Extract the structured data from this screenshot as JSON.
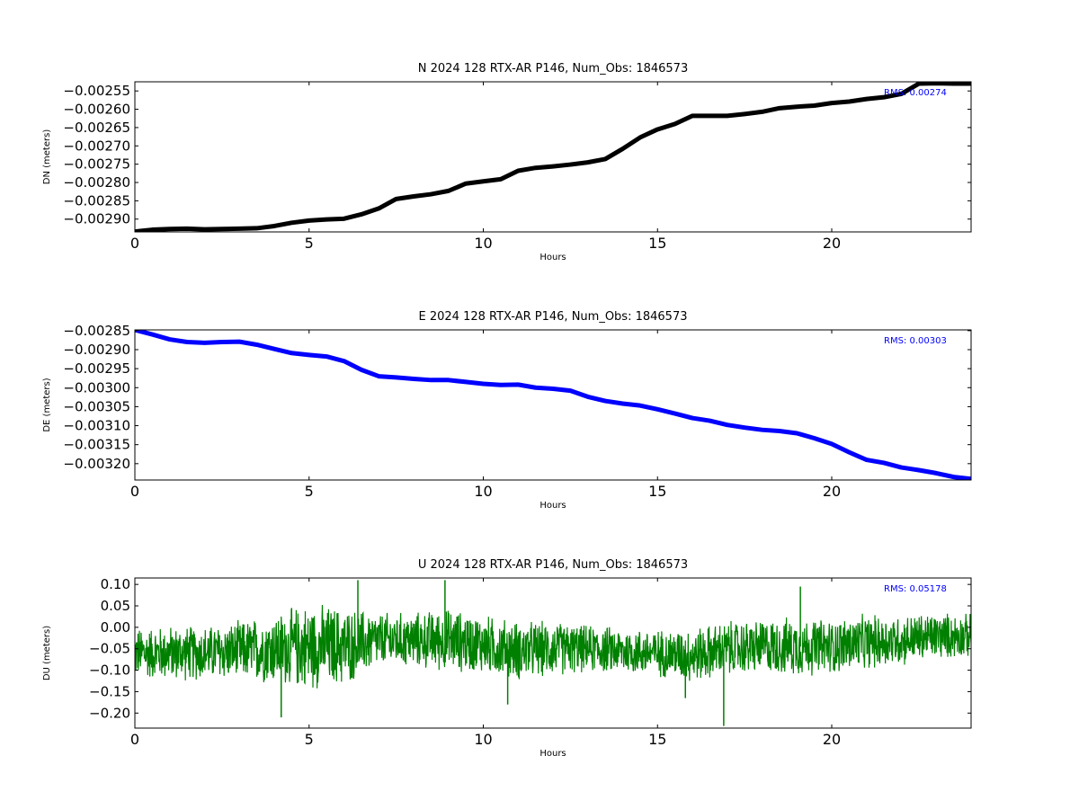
{
  "chart_data": [
    {
      "type": "line",
      "title": "N 2024 128 RTX-AR  P146, Num_Obs: 1846573",
      "xlabel": "Hours",
      "ylabel": "DN (meters)",
      "color": "#000000",
      "rms_text": "RMS:  0.00274",
      "rms_color": "#0000ff",
      "xlim": [
        0,
        24
      ],
      "ylim": [
        -0.002935,
        -0.002525
      ],
      "x_ticks": [
        0,
        5,
        10,
        15,
        20
      ],
      "x_tick_labels": [
        "0",
        "5",
        "10",
        "15",
        "20"
      ],
      "y_ticks": [
        -0.00255,
        -0.0026,
        -0.00265,
        -0.0027,
        -0.00275,
        -0.0028,
        -0.00285,
        -0.0029
      ],
      "y_tick_labels": [
        "−0.00255",
        "−0.00260",
        "−0.00265",
        "−0.00270",
        "−0.00275",
        "−0.00280",
        "−0.00285",
        "−0.00290"
      ],
      "grid": false,
      "series": [
        {
          "x": [
            0,
            0.5,
            1,
            1.5,
            2,
            2.5,
            3,
            3.5,
            4,
            4.5,
            5,
            5.5,
            6,
            6.5,
            7,
            7.5,
            8,
            8.5,
            9,
            9.5,
            10,
            10.5,
            11,
            11.5,
            12,
            12.5,
            13,
            13.5,
            14,
            14.5,
            15,
            15.5,
            16,
            16.5,
            17,
            17.5,
            18,
            18.5,
            19,
            19.5,
            20,
            20.5,
            21,
            21.5,
            22,
            22.5,
            23,
            23.5,
            24
          ],
          "y": [
            -0.002934,
            -0.002929,
            -0.002927,
            -0.002926,
            -0.002928,
            -0.002927,
            -0.002926,
            -0.002925,
            -0.002919,
            -0.00291,
            -0.002904,
            -0.002901,
            -0.002899,
            -0.002887,
            -0.002871,
            -0.002845,
            -0.002838,
            -0.002832,
            -0.002823,
            -0.002803,
            -0.002797,
            -0.002791,
            -0.002768,
            -0.00276,
            -0.002756,
            -0.002751,
            -0.002745,
            -0.002736,
            -0.002708,
            -0.002677,
            -0.002655,
            -0.00264,
            -0.002618,
            -0.002618,
            -0.002618,
            -0.002613,
            -0.002607,
            -0.002597,
            -0.002593,
            -0.00259,
            -0.002583,
            -0.002579,
            -0.002572,
            -0.002567,
            -0.002558,
            -0.00253,
            -0.002529,
            -0.00253,
            -0.00253
          ]
        }
      ]
    },
    {
      "type": "line",
      "title": "E 2024 128 RTX-AR  P146, Num_Obs: 1846573",
      "xlabel": "Hours",
      "ylabel": "DE (meters)",
      "color": "#0000ff",
      "rms_text": "RMS:  0.00303",
      "rms_color": "#0000ff",
      "xlim": [
        0,
        24
      ],
      "ylim": [
        -0.003243,
        -0.002848
      ],
      "x_ticks": [
        0,
        5,
        10,
        15,
        20
      ],
      "x_tick_labels": [
        "0",
        "5",
        "10",
        "15",
        "20"
      ],
      "y_ticks": [
        -0.00285,
        -0.0029,
        -0.00295,
        -0.003,
        -0.00305,
        -0.0031,
        -0.00315,
        -0.0032
      ],
      "y_tick_labels": [
        "−0.00285",
        "−0.00290",
        "−0.00295",
        "−0.00300",
        "−0.00305",
        "−0.00310",
        "−0.00315",
        "−0.00320"
      ],
      "grid": false,
      "series": [
        {
          "x": [
            0,
            0.5,
            1,
            1.5,
            2,
            2.5,
            3,
            3.5,
            4,
            4.5,
            5,
            5.5,
            6,
            6.5,
            7,
            7.5,
            8,
            8.5,
            9,
            9.5,
            10,
            10.5,
            11,
            11.5,
            12,
            12.5,
            13,
            13.5,
            14,
            14.5,
            15,
            15.5,
            16,
            16.5,
            17,
            17.5,
            18,
            18.5,
            19,
            19.5,
            20,
            20.5,
            21,
            21.5,
            22,
            22.5,
            23,
            23.5,
            24
          ],
          "y": [
            -0.002848,
            -0.00286,
            -0.002873,
            -0.00288,
            -0.002882,
            -0.00288,
            -0.002879,
            -0.002887,
            -0.002898,
            -0.002909,
            -0.002914,
            -0.002918,
            -0.00293,
            -0.002953,
            -0.00297,
            -0.002973,
            -0.002977,
            -0.00298,
            -0.00298,
            -0.002985,
            -0.00299,
            -0.002993,
            -0.002992,
            -0.003,
            -0.003003,
            -0.003008,
            -0.003024,
            -0.003035,
            -0.003042,
            -0.003047,
            -0.003057,
            -0.003068,
            -0.00308,
            -0.003087,
            -0.003098,
            -0.003105,
            -0.003111,
            -0.003114,
            -0.00312,
            -0.003133,
            -0.003148,
            -0.00317,
            -0.00319,
            -0.003198,
            -0.00321,
            -0.003217,
            -0.003225,
            -0.003235,
            -0.00324
          ]
        }
      ]
    },
    {
      "type": "line",
      "title": "U 2024 128 RTX-AR  P146, Num_Obs: 1846573",
      "xlabel": "Hours",
      "ylabel": "DU (meters)",
      "color": "#008000",
      "rms_text": "RMS:  0.05178",
      "rms_color": "#0000ff",
      "xlim": [
        0,
        24
      ],
      "ylim": [
        -0.235,
        0.115
      ],
      "x_ticks": [
        0,
        5,
        10,
        15,
        20
      ],
      "x_tick_labels": [
        "0",
        "5",
        "10",
        "15",
        "20"
      ],
      "y_ticks": [
        0.1,
        0.05,
        0.0,
        -0.05,
        -0.1,
        -0.15,
        -0.2
      ],
      "y_tick_labels": [
        "0.10",
        "0.05",
        "0.00",
        "−0.05",
        "−0.10",
        "−0.15",
        "−0.20"
      ],
      "grid": false,
      "series": [
        {
          "x": [
            0,
            1,
            2,
            3,
            4,
            5,
            6,
            7,
            8,
            9,
            10,
            11,
            12,
            13,
            14,
            15,
            16,
            17,
            18,
            19,
            20,
            21,
            22,
            23,
            24
          ],
          "center": [
            -0.06,
            -0.06,
            -0.06,
            -0.055,
            -0.05,
            -0.045,
            -0.045,
            -0.03,
            -0.03,
            -0.03,
            -0.04,
            -0.055,
            -0.05,
            -0.05,
            -0.055,
            -0.06,
            -0.065,
            -0.05,
            -0.045,
            -0.045,
            -0.045,
            -0.035,
            -0.03,
            -0.02,
            -0.02
          ],
          "half_range": [
            0.065,
            0.07,
            0.07,
            0.075,
            0.09,
            0.11,
            0.1,
            0.07,
            0.07,
            0.08,
            0.075,
            0.075,
            0.07,
            0.06,
            0.06,
            0.06,
            0.07,
            0.07,
            0.07,
            0.075,
            0.07,
            0.07,
            0.065,
            0.06,
            0.055
          ],
          "spikes": [
            {
              "x": 4.2,
              "y": -0.21
            },
            {
              "x": 6.4,
              "y": 0.11
            },
            {
              "x": 8.9,
              "y": 0.11
            },
            {
              "x": 10.7,
              "y": -0.18
            },
            {
              "x": 16.9,
              "y": -0.23
            },
            {
              "x": 19.1,
              "y": 0.095
            },
            {
              "x": 15.8,
              "y": -0.165
            }
          ]
        }
      ]
    }
  ]
}
